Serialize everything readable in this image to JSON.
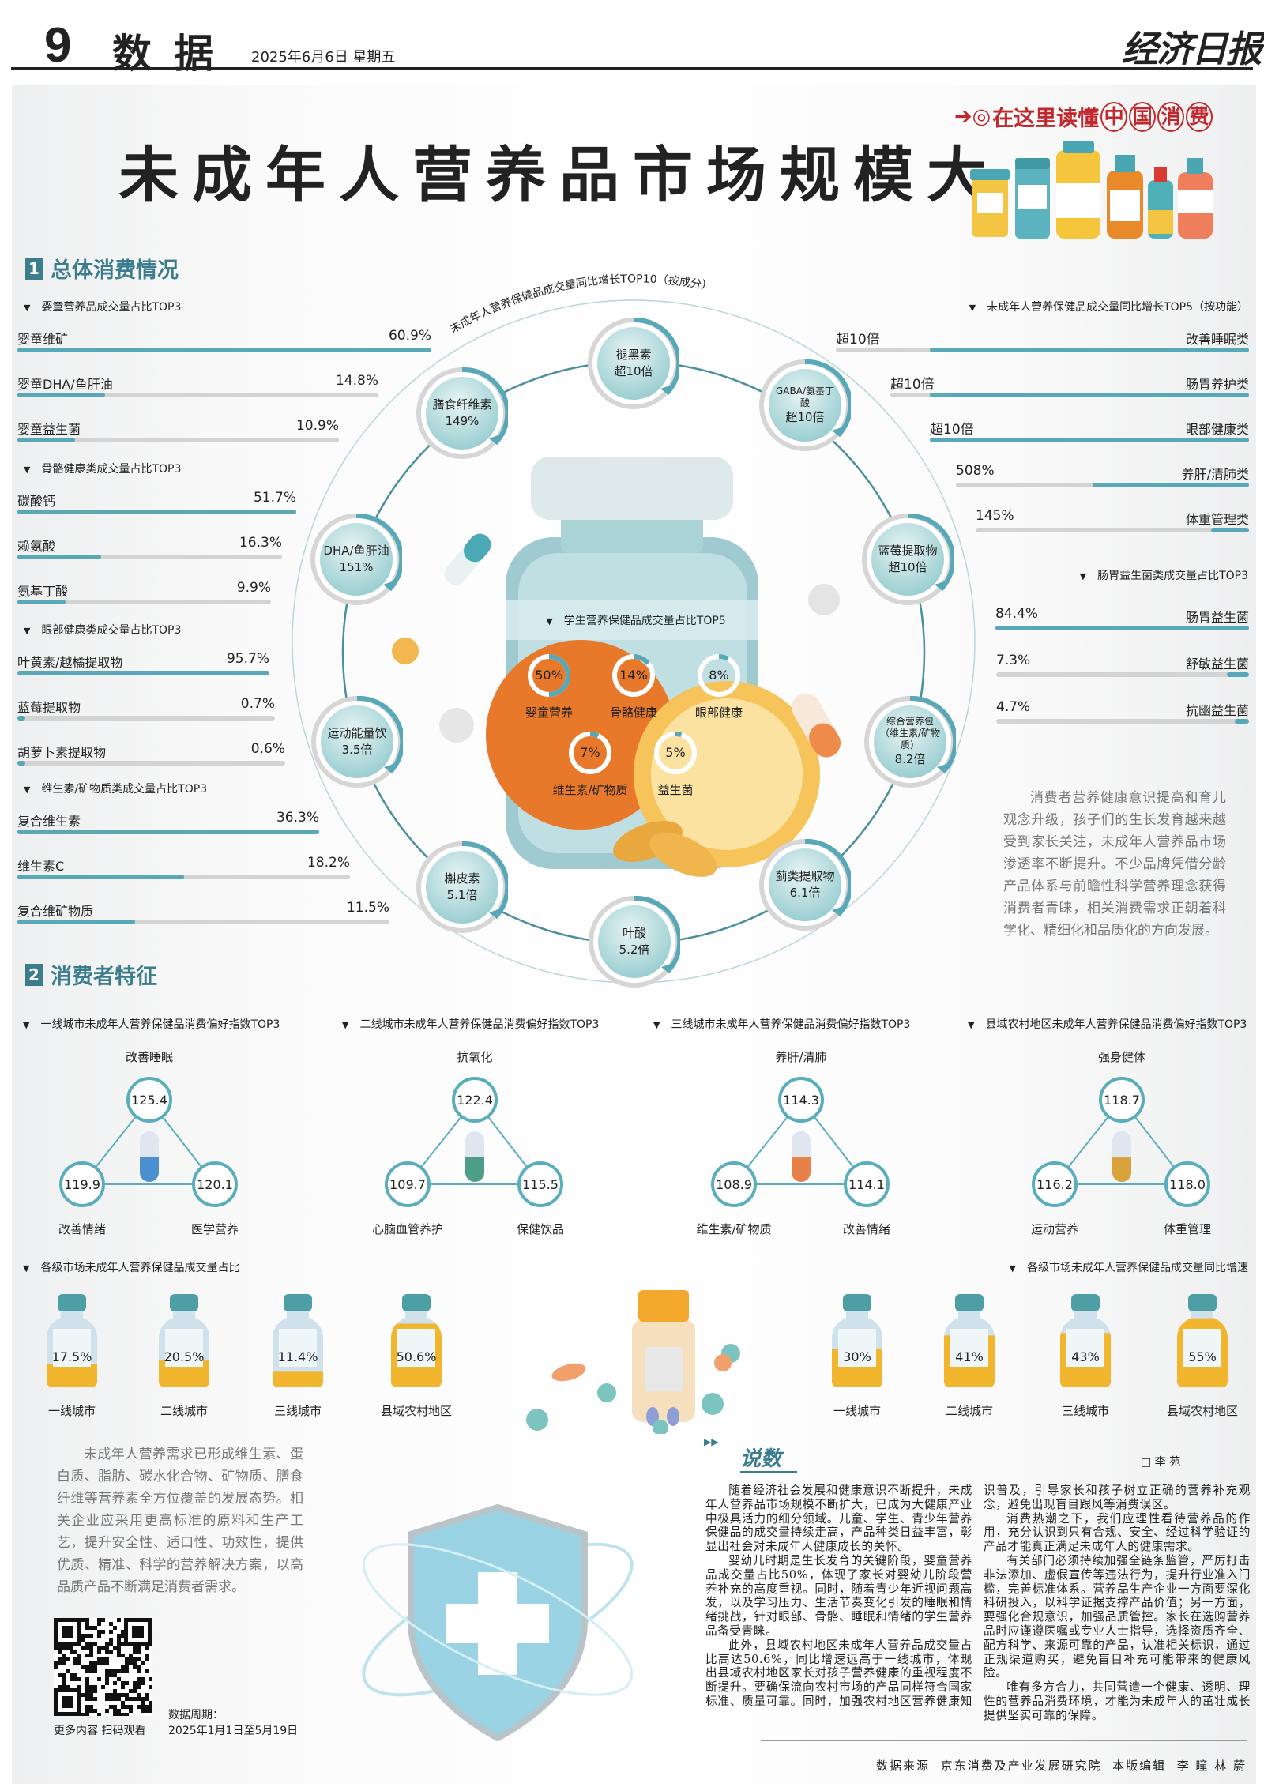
{
  "header": {
    "page_number": "9",
    "section": "数据",
    "date": "2025年6月6日  星期五",
    "logo_text": "经济日报"
  },
  "title": "未成年人营养品市场规模大",
  "badge": {
    "prefix": "在这里读懂",
    "chars": [
      "中",
      "国",
      "消",
      "费"
    ],
    "color": "#c0282d"
  },
  "colors": {
    "accent": "#58a8b8",
    "track": "#d3d3d3",
    "heading": "#3b7d8c",
    "liquid": "#f2b52e"
  },
  "section1": {
    "number": "1",
    "title": "总体消费情况"
  },
  "left_groups": [
    {
      "title": "婴童营养品成交量占比TOP3",
      "items": [
        {
          "label": "婴童维矿",
          "value": "60.9%"
        },
        {
          "label": "婴童DHA/鱼肝油",
          "value": "14.8%"
        },
        {
          "label": "婴童益生菌",
          "value": "10.9%"
        }
      ]
    },
    {
      "title": "骨骼健康类成交量占比TOP3",
      "items": [
        {
          "label": "碳酸钙",
          "value": "51.7%"
        },
        {
          "label": "赖氨酸",
          "value": "16.3%"
        },
        {
          "label": "氨基丁酸",
          "value": "9.9%"
        }
      ]
    },
    {
      "title": "眼部健康类成交量占比TOP3",
      "items": [
        {
          "label": "叶黄素/越橘提取物",
          "value": "95.7%"
        },
        {
          "label": "蓝莓提取物",
          "value": "0.7%"
        },
        {
          "label": "胡萝卜素提取物",
          "value": "0.6%"
        }
      ]
    },
    {
      "title": "维生素/矿物质类成交量占比TOP3",
      "items": [
        {
          "label": "复合维生素",
          "value": "36.3%"
        },
        {
          "label": "维生素C",
          "value": "18.2%"
        },
        {
          "label": "复合维矿物质",
          "value": "11.5%"
        }
      ]
    }
  ],
  "right_groups": [
    {
      "title": "未成年人营养保健品成交量同比增长TOP5（按功能）",
      "items": [
        {
          "label": "改善睡眠类",
          "value": "超10倍",
          "fill": 1
        },
        {
          "label": "肠胃养护类",
          "value": "超10倍",
          "fill": 1
        },
        {
          "label": "眼部健康类",
          "value": "超10倍",
          "fill": 1
        },
        {
          "label": "养肝/清肺类",
          "value": "508%",
          "fill": 0.49
        },
        {
          "label": "体重管理类",
          "value": "145%",
          "fill": 0.12
        }
      ]
    },
    {
      "title": "肠胃益生菌类成交量占比TOP3",
      "items": [
        {
          "label": "肠胃益生菌",
          "value": "84.4%"
        },
        {
          "label": "舒敏益生菌",
          "value": "7.3%"
        },
        {
          "label": "抗幽益生菌",
          "value": "4.7%"
        }
      ]
    }
  ],
  "circle": {
    "title": "未成年人营养保健品成交量同比增长TOP10（按成分）",
    "nodes": [
      {
        "name": "褪黑素",
        "value": "超10倍"
      },
      {
        "name": "GABA/氨基丁酸",
        "value": "超10倍"
      },
      {
        "name": "蓝莓提取物",
        "value": "超10倍"
      },
      {
        "name": "综合营养包（维生素/矿物质）",
        "value": "8.2倍"
      },
      {
        "name": "蓟类提取物",
        "value": "6.1倍"
      },
      {
        "name": "叶酸",
        "value": "5.2倍"
      },
      {
        "name": "槲皮素",
        "value": "5.1倍"
      },
      {
        "name": "运动能量饮",
        "value": "3.5倍"
      },
      {
        "name": "DHA/鱼肝油",
        "value": "151%"
      },
      {
        "name": "膳食纤维素",
        "value": "149%"
      }
    ]
  },
  "student": {
    "title": "学生营养保健品成交量占比TOP5",
    "items": [
      {
        "label": "婴童营养",
        "value": "50%"
      },
      {
        "label": "骨骼健康",
        "value": "14%"
      },
      {
        "label": "眼部健康",
        "value": "8%"
      },
      {
        "label": "维生素/矿物质",
        "value": "7%"
      },
      {
        "label": "益生菌",
        "value": "5%"
      }
    ]
  },
  "right_paragraph": "消费者营养健康意识提高和育儿观念升级，孩子们的生长发育越来越受到家长关注，未成年人营养品市场渗透率不断提升。不少品牌凭借分龄产品体系与前瞻性科学营养理念获得消费者青睐，相关消费需求正朝着科学化、精细化和品质化的方向发展。",
  "section2": {
    "number": "2",
    "title": "消费者特征"
  },
  "city_prefs": [
    {
      "title": "一线城市未成年人营养保健品消费偏好指数TOP3",
      "top": {
        "label": "改善睡眠",
        "value": "125.4"
      },
      "left": {
        "label": "改善情绪",
        "value": "119.9"
      },
      "right": {
        "label": "医学营养",
        "value": "120.1"
      },
      "pill_color": "#4a90d0"
    },
    {
      "title": "二线城市未成年人营养保健品消费偏好指数TOP3",
      "top": {
        "label": "抗氧化",
        "value": "122.4"
      },
      "left": {
        "label": "心脑血管养护",
        "value": "109.7"
      },
      "right": {
        "label": "保健饮品",
        "value": "115.5"
      },
      "pill_color": "#4c9e86"
    },
    {
      "title": "三线城市未成年人营养保健品消费偏好指数TOP3",
      "top": {
        "label": "养肝/清肺",
        "value": "114.3"
      },
      "left": {
        "label": "维生素/矿物质",
        "value": "108.9"
      },
      "right": {
        "label": "改善情绪",
        "value": "114.1"
      },
      "pill_color": "#e8804a"
    },
    {
      "title": "县域农村地区未成年人营养保健品消费偏好指数TOP3",
      "top": {
        "label": "强身健体",
        "value": "118.7"
      },
      "left": {
        "label": "运动营养",
        "value": "116.2"
      },
      "right": {
        "label": "体重管理",
        "value": "118.0"
      },
      "pill_color": "#d9a23a"
    }
  ],
  "market_share": {
    "title": "各级市场未成年人营养保健品成交量占比",
    "items": [
      {
        "label": "一线城市",
        "value": "17.5%"
      },
      {
        "label": "二线城市",
        "value": "20.5%"
      },
      {
        "label": "三线城市",
        "value": "11.4%"
      },
      {
        "label": "县域农村地区",
        "value": "50.6%"
      }
    ]
  },
  "market_growth": {
    "title": "各级市场未成年人营养保健品成交量同比增速",
    "items": [
      {
        "label": "一线城市",
        "value": "30%"
      },
      {
        "label": "二线城市",
        "value": "41%"
      },
      {
        "label": "三线城市",
        "value": "43%"
      },
      {
        "label": "县域农村地区",
        "value": "55%"
      }
    ]
  },
  "left_paragraph": "未成年人营养需求已形成维生素、蛋白质、脂肪、碳水化合物、矿物质、膳食纤维等营养素全方位覆盖的发展态势。相关企业应采用更高标准的原料和生产工艺，提升安全性、适口性、功效性，提供优质、精准、科学的营养解决方案，以高品质产品不断满足消费者需求。",
  "qr": {
    "caption": "更多内容 扫码观看"
  },
  "data_period": {
    "label": "数据周期：",
    "value": "2025年1月1日至5月19日"
  },
  "commentary": {
    "title": "说数",
    "author": "□ 李  苑",
    "paragraphs": [
      "随着经济社会发展和健康意识不断提升，未成年人营养品市场规模不断扩大，已成为大健康产业中极具活力的细分领域。儿童、学生、青少年营养保健品的成交量持续走高，产品种类日益丰富，彰显出社会对未成年人健康成长的关怀。",
      "婴幼儿时期是生长发育的关键阶段，婴童营养品成交量占比50%，体现了家长对婴幼儿阶段营养补充的高度重视。同时，随着青少年近视问题高发，以及学习压力、生活节奏变化引发的睡眠和情绪挑战，针对眼部、骨骼、睡眠和情绪的学生营养品备受青睐。",
      "此外，县域农村地区未成年人营养品成交量占比高达50.6%，同比增速远高于一线城市，体现出县域农村地区家长对孩子营养健康的重视程度不断提升。要确保流向农村市场的产品同样符合国家标准、质量可靠。同时，加强农村地区营养健康知识普及，引导家长和孩子树立正确的营养补充观念，避免出现盲目跟风等消费误区。",
      "消费热潮之下，我们应理性看待营养品的作用，充分认识到只有合规、安全、经过科学验证的产品才能真正满足未成年人的健康需求。",
      "有关部门必须持续加强全链条监管，严厉打击非法添加、虚假宣传等违法行为，提升行业准入门槛，完善标准体系。营养品生产企业一方面要深化科研投入，以科学证据支撑产品价值；另一方面，要强化合规意识，加强品质管控。家长在选购营养品时应谨遵医嘱或专业人士指导，选择资质齐全、配方科学、来源可靠的产品，认准相关标识，通过正规渠道购买，避免盲目补充可能带来的健康风险。",
      "唯有多方合力，共同营造一个健康、透明、理性的营养品消费环境，才能为未成年人的茁壮成长提供坚实可靠的保障。"
    ]
  },
  "footer": {
    "source_label": "数据来源",
    "source": "京东消费及产业发展研究院",
    "editor_label": "本版编辑",
    "editors": "李  瞳  林  蔚"
  }
}
